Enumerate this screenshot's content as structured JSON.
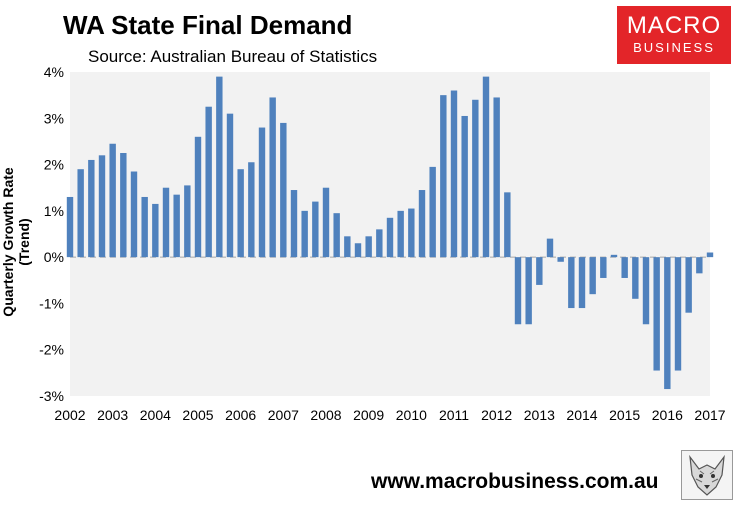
{
  "header": {
    "title": "WA State Final Demand",
    "subtitle": "Source: Australian Bureau of Statistics"
  },
  "logo": {
    "line1": "MACRO",
    "line2": "BUSINESS"
  },
  "footer": {
    "url": "www.macrobusiness.com.au",
    "icon": "wolf-icon"
  },
  "colors": {
    "bar": "#4f81bd",
    "plot_bg": "#f2f2f2",
    "logo_bg": "#e32529"
  },
  "chart_data": {
    "type": "bar",
    "title": "WA State Final Demand",
    "xlabel": "",
    "ylabel": "Quarterly Growth Rate (Trend)",
    "ylim": [
      -3,
      4
    ],
    "yticks": [
      "-3%",
      "-2%",
      "-1%",
      "0%",
      "1%",
      "2%",
      "3%",
      "4%"
    ],
    "xticks": [
      "2002",
      "2003",
      "2004",
      "2005",
      "2006",
      "2007",
      "2008",
      "2009",
      "2010",
      "2011",
      "2012",
      "2013",
      "2014",
      "2015",
      "2016",
      "2017"
    ],
    "x_start": 2002.0,
    "x_end": 2017.0,
    "series": [
      {
        "name": "WA State Final Demand",
        "x": [
          2002.0,
          2002.25,
          2002.5,
          2002.75,
          2003.0,
          2003.25,
          2003.5,
          2003.75,
          2004.0,
          2004.25,
          2004.5,
          2004.75,
          2005.0,
          2005.25,
          2005.5,
          2005.75,
          2006.0,
          2006.25,
          2006.5,
          2006.75,
          2007.0,
          2007.25,
          2007.5,
          2007.75,
          2008.0,
          2008.25,
          2008.5,
          2008.75,
          2009.0,
          2009.25,
          2009.5,
          2009.75,
          2010.0,
          2010.25,
          2010.5,
          2010.75,
          2011.0,
          2011.25,
          2011.5,
          2011.75,
          2012.0,
          2012.25,
          2012.5,
          2012.75,
          2013.0,
          2013.25,
          2013.5,
          2013.75,
          2014.0,
          2014.25,
          2014.5,
          2014.75,
          2015.0,
          2015.25,
          2015.5,
          2015.75,
          2016.0,
          2016.25,
          2016.5,
          2016.75,
          2017.0
        ],
        "values": [
          1.3,
          1.9,
          2.1,
          2.2,
          2.45,
          2.25,
          1.85,
          1.3,
          1.15,
          1.5,
          1.35,
          1.55,
          2.6,
          3.25,
          3.9,
          3.1,
          1.9,
          2.05,
          2.8,
          3.45,
          2.9,
          1.45,
          1.0,
          1.2,
          1.5,
          0.95,
          0.45,
          0.3,
          0.45,
          0.6,
          0.85,
          1.0,
          1.05,
          1.45,
          1.95,
          3.5,
          3.6,
          3.05,
          3.4,
          3.9,
          3.45,
          1.4,
          -1.45,
          -1.45,
          -0.6,
          0.4,
          -0.1,
          -1.1,
          -1.1,
          -0.8,
          -0.45,
          0.05,
          -0.45,
          -0.9,
          -1.45,
          -2.45,
          -2.85,
          -2.45,
          -1.2,
          -0.35,
          0.1
        ]
      }
    ]
  }
}
